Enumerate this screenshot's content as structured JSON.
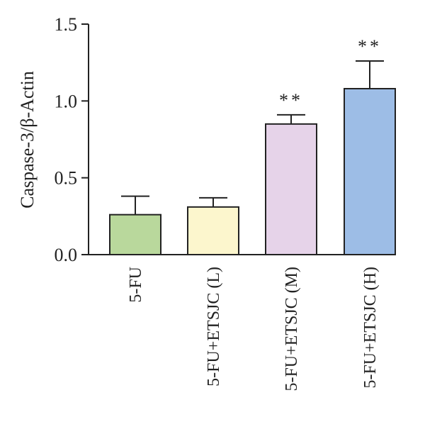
{
  "chart_data": {
    "type": "bar",
    "title": "",
    "xlabel": "",
    "ylabel": "Caspase-3/β-Actin",
    "ylim": [
      0,
      1.5
    ],
    "yticks": [
      "0.0",
      "0.5",
      "1.0",
      "1.5"
    ],
    "categories": [
      "5-FU",
      "5-FU+ETSJC (L)",
      "5-FU+ETSJC (M)",
      "5-FU+ETSJC (H)"
    ],
    "values": [
      0.26,
      0.31,
      0.85,
      1.08
    ],
    "errors": [
      0.12,
      0.06,
      0.06,
      0.18
    ],
    "significance": [
      "",
      "",
      "**",
      "**"
    ],
    "colors": [
      "#b9d89c",
      "#fcf6cd",
      "#e6d3e9",
      "#9dbde6"
    ],
    "grid": false,
    "legend": "none"
  }
}
